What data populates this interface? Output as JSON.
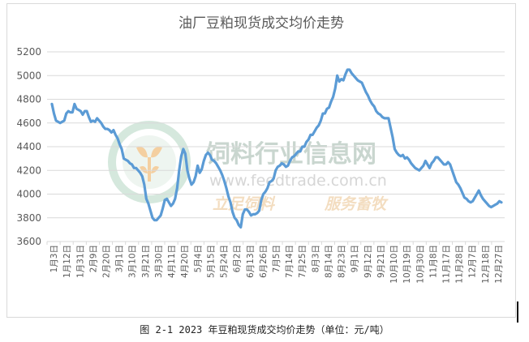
{
  "caption": "图 2-1 2023 年豆粕现货成交均价走势（单位：元/吨）",
  "watermark": {
    "brand": "饲料行业信息网",
    "url": "www.feedtrade.com.cn",
    "slogan_left": "立足饲料",
    "slogan_right": "服务畜牧"
  },
  "chart_data": {
    "type": "line",
    "title": "油厂豆粕现货成交均价走势",
    "xlabel": "",
    "ylabel": "",
    "ylim": [
      3600,
      5200
    ],
    "yticks": [
      3600,
      3800,
      4000,
      4200,
      4400,
      4600,
      4800,
      5000,
      5200
    ],
    "grid": "horizontal",
    "line_color": "#5b9bd5",
    "tick_labels": [
      "1月3日",
      "1月12日",
      "1月31日",
      "2月9日",
      "2月20日",
      "3月1日",
      "3月10日",
      "3月21日",
      "3月30日",
      "4月11日",
      "4月20日",
      "5月4日",
      "5月15日",
      "5月24日",
      "6月2日",
      "6月13日",
      "6月26日",
      "7月5日",
      "7月14日",
      "7月25日",
      "8月3日",
      "8月14日",
      "8月23日",
      "9月1日",
      "9月12日",
      "9月21日",
      "10月10日",
      "10月19日",
      "10月30日",
      "11月8日",
      "11月17日",
      "11月28日",
      "12月7日",
      "12月18日",
      "12月27日"
    ],
    "values": [
      4760,
      4680,
      4620,
      4610,
      4600,
      4610,
      4620,
      4680,
      4700,
      4690,
      4690,
      4760,
      4720,
      4710,
      4700,
      4670,
      4700,
      4700,
      4650,
      4610,
      4620,
      4610,
      4640,
      4620,
      4600,
      4570,
      4550,
      4550,
      4540,
      4520,
      4540,
      4500,
      4470,
      4420,
      4380,
      4300,
      4290,
      4280,
      4260,
      4250,
      4220,
      4220,
      4200,
      4180,
      4150,
      4080,
      3960,
      3920,
      3860,
      3800,
      3780,
      3780,
      3800,
      3820,
      3880,
      3950,
      3960,
      3930,
      3900,
      3920,
      3960,
      4050,
      4200,
      4320,
      4380,
      4340,
      4200,
      4130,
      4080,
      4100,
      4150,
      4240,
      4180,
      4210,
      4280,
      4330,
      4350,
      4330,
      4290,
      4280,
      4260,
      4230,
      4200,
      4160,
      4110,
      4050,
      3980,
      3930,
      3850,
      3800,
      3780,
      3740,
      3720,
      3830,
      3870,
      3870,
      3850,
      3820,
      3830,
      3830,
      3840,
      3860,
      3950,
      4000,
      4020,
      4050,
      4100,
      4110,
      4130,
      4200,
      4230,
      4240,
      4260,
      4250,
      4230,
      4240,
      4280,
      4310,
      4320,
      4340,
      4360,
      4360,
      4400,
      4400,
      4440,
      4460,
      4500,
      4500,
      4530,
      4560,
      4580,
      4620,
      4680,
      4680,
      4720,
      4730,
      4780,
      4820,
      4890,
      5000,
      4950,
      4970,
      4960,
      5010,
      5050,
      5050,
      5020,
      5000,
      4980,
      4960,
      4950,
      4940,
      4900,
      4860,
      4830,
      4790,
      4760,
      4740,
      4700,
      4680,
      4670,
      4650,
      4640,
      4640,
      4640,
      4560,
      4480,
      4380,
      4350,
      4330,
      4320,
      4330,
      4300,
      4310,
      4290,
      4260,
      4240,
      4220,
      4210,
      4200,
      4220,
      4240,
      4280,
      4250,
      4220,
      4260,
      4280,
      4310,
      4310,
      4290,
      4270,
      4250,
      4250,
      4270,
      4250,
      4200,
      4150,
      4100,
      4080,
      4050,
      4010,
      3970,
      3960,
      3940,
      3930,
      3940,
      3970,
      4000,
      4030,
      3990,
      3960,
      3940,
      3920,
      3900,
      3890,
      3900,
      3910,
      3920,
      3940,
      3930
    ]
  }
}
